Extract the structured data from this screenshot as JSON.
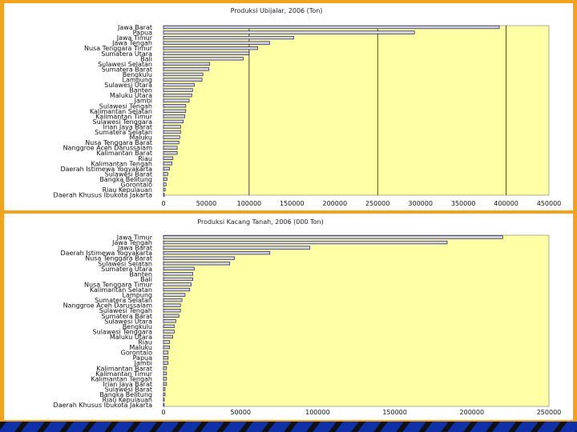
{
  "chart_data": [
    {
      "type": "bar",
      "orientation": "horizontal",
      "title": "Produksi Ubijalar, 2006 (Ton)",
      "xlim": [
        0,
        450000
      ],
      "xticks": [
        0,
        50000,
        100000,
        150000,
        200000,
        250000,
        300000,
        350000,
        400000,
        450000
      ],
      "gridlines_at": [
        100000,
        250000,
        400000
      ],
      "categories": [
        "Jawa Barat",
        "Papua",
        "Jawa Timur",
        "Jawa Tengah",
        "Nusa Tenggara Timur",
        "Sumatera Utara",
        "Bali",
        "Sulawesi Selatan",
        "Sumatera Barat",
        "Bengkulu",
        "Lampung",
        "Sulawesi Utara",
        "Banten",
        "Maluku Utara",
        "Jambi",
        "Sulawesi Tengah",
        "Kalimantan Selatan",
        "Kalimantan Timur",
        "Sulawesi Tenggara",
        "Irian Jaya Barat",
        "Sumatera Selatan",
        "Maluku",
        "Nusa Tenggara Barat",
        "Nanggroe Aceh Darussalam",
        "Kalimantan Barat",
        "Riau",
        "Kalimantan Tengah",
        "Daerah Istimewa Yogyakarta",
        "Sulawesi Barat",
        "Bangka Belitung",
        "Gorontalo",
        "Riau Kepulauan",
        "Daerah Khusus Ibukota Jakarta"
      ],
      "values": [
        392000,
        293000,
        152000,
        124000,
        110000,
        100000,
        93000,
        54000,
        53000,
        46000,
        45000,
        36000,
        34000,
        33000,
        30000,
        26000,
        26000,
        25000,
        23000,
        20000,
        20000,
        19000,
        18000,
        16000,
        16000,
        11000,
        10000,
        7000,
        5000,
        4000,
        3000,
        2000,
        1000
      ]
    },
    {
      "type": "bar",
      "orientation": "horizontal",
      "title": "Produksi Kacang Tanah, 2006 (000 Ton)",
      "xlim": [
        0,
        250000
      ],
      "xticks": [
        0,
        50000,
        100000,
        150000,
        200000,
        250000
      ],
      "gridlines_at": [],
      "categories": [
        "Jawa Timur",
        "Jawa Tengah",
        "Jawa Barat",
        "Daerah Istimewa Yogyakarta",
        "Nusa Tenggara Barat",
        "Sulawesi Selatan",
        "Sumatera Utara",
        "Banten",
        "Bali",
        "Nusa Tenggara Timur",
        "Kalimantan Selatan",
        "Lampung",
        "Sumatera Selatan",
        "Nanggroe Aceh Darussalam",
        "Sulawesi Tengah",
        "Sumatera Barat",
        "Sulawesi Utara",
        "Bengkulu",
        "Sulawesi Tenggara",
        "Maluku Utara",
        "Riau",
        "Maluku",
        "Gorontalo",
        "Papua",
        "Jambi",
        "Kalimantan Barat",
        "Kalimantan Timur",
        "Kalimantan Tengah",
        "Irian Jaya Barat",
        "Sulawesi Barat",
        "Bangka Belitung",
        "Riau Kepulauan",
        "Daerah Khusus Ibukota Jakarta"
      ],
      "values": [
        220000,
        184000,
        95000,
        69000,
        46000,
        43000,
        20000,
        19000,
        19000,
        18000,
        17000,
        14000,
        12000,
        11000,
        11000,
        10000,
        8000,
        7000,
        7000,
        6000,
        4000,
        4000,
        3000,
        3000,
        3000,
        2000,
        2000,
        2000,
        2000,
        1000,
        1000,
        500,
        300
      ]
    }
  ]
}
